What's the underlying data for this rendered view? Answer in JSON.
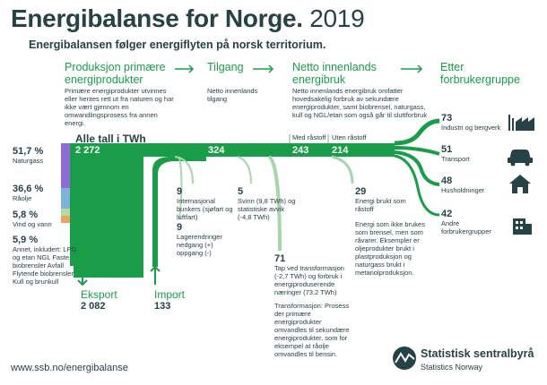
{
  "header": {
    "title": "Energibalanse for Norge.",
    "year": "2019",
    "subtitle": "Energibalansen følger energiflyten på norsk territorium."
  },
  "columns": {
    "primary": {
      "title": "Produksjon primære energiprodukter",
      "desc": "Primære energiprodukter utvinnes eller hentes rett ut fra naturen og har ikke vært gjennom en omwandlingsprosess fra annen energi."
    },
    "supply": {
      "title": "Tilgang",
      "desc": "Netto innenlands tilgang"
    },
    "net": {
      "title": "Netto innenlands energibruk",
      "desc": "Netto innenlands energibruk omfatter hovedsakelig forbruk av sekundære energiprodukter, samt biobrensel, naturgass, kull og NGL/etan som også går til sluttforbruk"
    },
    "consumer": {
      "title": "Etter forbrukergruppe"
    }
  },
  "all_figures_label": "Alle tall i TWh",
  "flow_values": {
    "production": "2 272",
    "supply": "324",
    "net_use": "243",
    "net_use_excl": "214"
  },
  "flow_labels": {
    "with_feedstock": "Med råstoff",
    "without_feedstock": "Uten råstoff"
  },
  "sources": [
    {
      "pct": "51,7 %",
      "label": "Naturgass",
      "color": "#8e6bd6"
    },
    {
      "pct": "36,6 %",
      "label": "Råolje",
      "color": "#7fb2d9"
    },
    {
      "pct": "5,8 %",
      "label": "Vind og vann",
      "color": "#b7d9a3"
    },
    {
      "pct": "5,9 %",
      "label": "Annet, inkludert: LPG og etan NGL Faste biobrensler Avfall Flytende biobrensler Kull og brunkull",
      "color": "#f0a35e"
    }
  ],
  "export": {
    "label": "Eksport",
    "value": "2 082"
  },
  "import": {
    "label": "Import",
    "value": "133"
  },
  "losses": [
    {
      "value": "9",
      "label": "Internasjonal bunkers (sjøfart og luftfart)"
    },
    {
      "value": "9",
      "label": "Lagerendringer nedgang (+) oppgang (-)"
    },
    {
      "value": "5",
      "label": "Svinn (9,8 TWh) og statistiske avvik (-4,8 TWh)"
    },
    {
      "value": "71",
      "label": "Tap ved transformasjon (-2,7 TWh) og forbruk i energiproduserende næringer (73,2 TWh)"
    },
    {
      "value": "29",
      "label": "Energi brukt som råstoff"
    }
  ],
  "transformation_note": "Transformasjon: Prosess der primære energiprodukter omvandles til sekundære energiprodukter, som for eksempel at råolje omvandles til bensin.",
  "feedstock_note": "Energi som ikke brukes som brensel, men som råvarer. Eksempler er oljeprodukter brukt i plastproduksjon og naturgass brukt i metanolproduksjon.",
  "consumers": [
    {
      "value": "73",
      "label": "Industri og bergverk",
      "icon": "factory-icon"
    },
    {
      "value": "51",
      "label": "Transport",
      "icon": "car-icon"
    },
    {
      "value": "48",
      "label": "Husholdninger",
      "icon": "house-icon"
    },
    {
      "value": "42",
      "label": "Andre forbrukergrupper",
      "icon": "building-icon"
    }
  ],
  "footer": {
    "url": "www.ssb.no/energibalanse",
    "org_name": "Statistisk sentralbyrå",
    "org_name_en": "Statistics Norway"
  },
  "colors": {
    "green": "#1a9d49",
    "light_green": "#a8d5ae",
    "dark": "#274247"
  }
}
